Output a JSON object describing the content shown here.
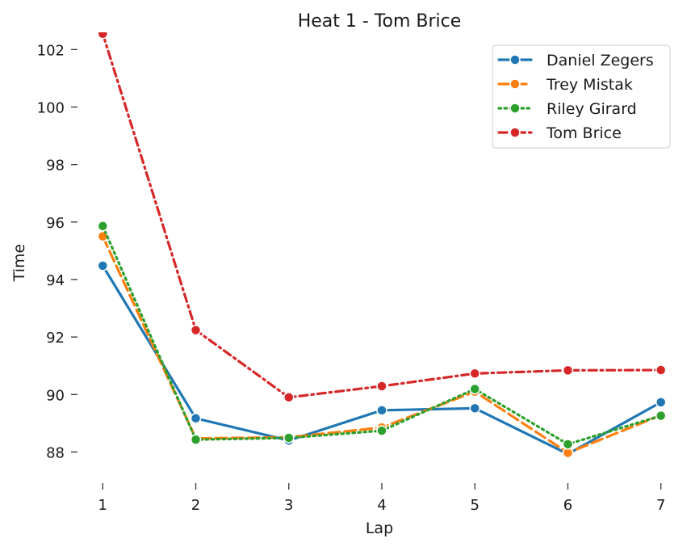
{
  "chart_data": {
    "type": "line",
    "title": "Heat 1 - Tom Brice",
    "xlabel": "Lap",
    "ylabel": "Time",
    "x": [
      1,
      2,
      3,
      4,
      5,
      6,
      7
    ],
    "x_ticks": [
      "1",
      "2",
      "3",
      "4",
      "5",
      "6",
      "7"
    ],
    "y_ticks": [
      "88",
      "90",
      "92",
      "94",
      "96",
      "98",
      "100",
      "102"
    ],
    "xlim": [
      0.85,
      7.15
    ],
    "ylim": [
      87.0,
      102.6
    ],
    "grid": false,
    "legend_position": "top-right",
    "series": [
      {
        "name": "Daniel Zegers",
        "values": [
          94.48,
          89.17,
          88.4,
          89.45,
          89.52,
          87.93,
          89.73
        ],
        "color": "#1f77b4",
        "line_style": "solid",
        "marker": "circle"
      },
      {
        "name": "Trey Mistak",
        "values": [
          95.5,
          88.47,
          88.51,
          88.85,
          90.1,
          87.97,
          89.28
        ],
        "color": "#ff7f0e",
        "line_style": "dashed",
        "marker": "circle"
      },
      {
        "name": "Riley Girard",
        "values": [
          95.86,
          88.43,
          88.49,
          88.74,
          90.19,
          88.27,
          89.26
        ],
        "color": "#2ca02c",
        "line_style": "dotted",
        "marker": "circle"
      },
      {
        "name": "Tom Brice",
        "values": [
          102.55,
          92.24,
          89.9,
          90.29,
          90.73,
          90.84,
          90.85
        ],
        "color": "#d62728",
        "line_style": "dashdot",
        "marker": "circle"
      }
    ]
  }
}
